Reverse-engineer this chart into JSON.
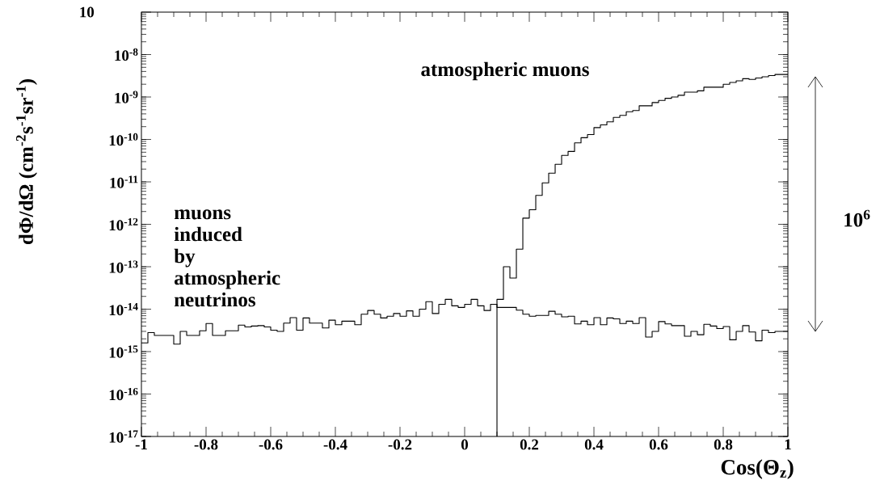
{
  "chart_data": {
    "type": "step",
    "xlabel": "Cos(Θ$_{z}$)",
    "ylabel": "dΦ/dΩ (cm$^{-2}$s$^{-1}$sr$^{-1}$)",
    "xlim": [
      -1,
      1
    ],
    "ylim": [
      1e-17,
      1e-07
    ],
    "log": true,
    "xticks": [
      {
        "value": -1,
        "label": "-1"
      },
      {
        "value": -0.8,
        "label": "-0.8"
      },
      {
        "value": -0.6,
        "label": "-0.6"
      },
      {
        "value": -0.4,
        "label": "-0.4"
      },
      {
        "value": -0.2,
        "label": "-0.2"
      },
      {
        "value": 0,
        "label": "0"
      },
      {
        "value": 0.2,
        "label": "0.2"
      },
      {
        "value": 0.4,
        "label": "0.4"
      },
      {
        "value": 0.6,
        "label": "0.6"
      },
      {
        "value": 0.8,
        "label": "0.8"
      },
      {
        "value": 1,
        "label": "1"
      }
    ],
    "yticks": [
      {
        "value": 1e-17,
        "label": "10$^{-17}$"
      },
      {
        "value": 1e-16,
        "label": "10$^{-16}$"
      },
      {
        "value": 1e-15,
        "label": "10$^{-15}$"
      },
      {
        "value": 1e-14,
        "label": "10$^{-14}$"
      },
      {
        "value": 1e-13,
        "label": "10$^{-13}$"
      },
      {
        "value": 1e-12,
        "label": "10$^{-12}$"
      },
      {
        "value": 1e-11,
        "label": "10$^{-11}$"
      },
      {
        "value": 1e-10,
        "label": "10$^{-10}$"
      },
      {
        "value": 1e-09,
        "label": "10$^{-9}$"
      },
      {
        "value": 1e-08,
        "label": "10$^{-8}$"
      },
      {
        "value": 1e-07,
        "label": null
      }
    ],
    "series": [
      {
        "name": "muons induced by atmospheric neutrinos",
        "color": "#000000",
        "x": [
          -1,
          -0.98,
          -0.96,
          -0.94,
          -0.92,
          -0.9,
          -0.88,
          -0.86,
          -0.84,
          -0.82,
          -0.8,
          -0.78,
          -0.76,
          -0.74,
          -0.72,
          -0.7,
          -0.68,
          -0.66,
          -0.64,
          -0.62,
          -0.6,
          -0.58,
          -0.56,
          -0.54,
          -0.52,
          -0.5,
          -0.48,
          -0.46,
          -0.44,
          -0.42,
          -0.4,
          -0.38,
          -0.36,
          -0.34,
          -0.32,
          -0.3,
          -0.28,
          -0.26,
          -0.24,
          -0.22,
          -0.2,
          -0.18,
          -0.16,
          -0.14,
          -0.12,
          -0.1,
          -0.08,
          -0.06,
          -0.04,
          -0.02,
          0,
          0.02,
          0.04,
          0.06,
          0.08,
          0.1,
          0.12,
          0.14,
          0.16,
          0.18,
          0.2,
          0.22,
          0.24,
          0.26,
          0.28,
          0.3,
          0.32,
          0.34,
          0.36,
          0.38,
          0.4,
          0.42,
          0.44,
          0.46,
          0.48,
          0.5,
          0.52,
          0.54,
          0.56,
          0.58,
          0.6,
          0.62,
          0.64,
          0.66,
          0.68,
          0.7,
          0.72,
          0.74,
          0.76,
          0.78,
          0.8,
          0.82,
          0.84,
          0.86,
          0.88,
          0.9,
          0.92,
          0.94,
          0.96,
          0.98,
          1
        ],
        "values": [
          1.6e-15,
          2.8e-15,
          2.4e-15,
          2.4e-15,
          2.4e-15,
          1.5e-15,
          3e-15,
          2.4e-15,
          2.4e-15,
          3.1e-15,
          4.6e-15,
          2.4e-15,
          2.4e-15,
          3.1e-15,
          3.1e-15,
          4.2e-15,
          3.8e-15,
          4e-15,
          4.1e-15,
          3.8e-15,
          3.2e-15,
          3e-15,
          4.7e-15,
          6.3e-15,
          3.2e-15,
          6.2e-15,
          4.7e-15,
          4.7e-15,
          3.6e-15,
          5.5e-15,
          4.3e-15,
          5.2e-15,
          5.2e-15,
          4.3e-15,
          7.6e-15,
          9.3e-15,
          7.6e-15,
          6.2e-15,
          6.8e-15,
          7.9e-15,
          6.8e-15,
          9.1e-15,
          6.8e-15,
          1e-14,
          1.5e-14,
          7.9e-15,
          1.3e-14,
          1.7e-14,
          1.2e-14,
          1.1e-14,
          1.3e-14,
          1.7e-14,
          1.2e-14,
          9.3e-15,
          1.3e-14,
          1.1e-14,
          1.1e-14,
          1.1e-14,
          9.5e-15,
          7.6e-15,
          6.8e-15,
          7.1e-15,
          7.1e-15,
          8.9e-15,
          7.6e-15,
          6.6e-15,
          6.8e-15,
          4.5e-15,
          5.2e-15,
          4.3e-15,
          6.3e-15,
          4.3e-15,
          6.2e-15,
          5.9e-15,
          4.6e-15,
          5.2e-15,
          4.6e-15,
          6.3e-15,
          2.2e-15,
          3e-15,
          5.1e-15,
          4.5e-15,
          4.1e-15,
          4.1e-15,
          2.3e-15,
          3e-15,
          2.5e-15,
          4.4e-15,
          4e-15,
          3.5e-15,
          3.9e-15,
          1.9e-15,
          3e-15,
          4.1e-15,
          2.9e-15,
          1.8e-15,
          3.2e-15,
          2.8e-15,
          3e-15,
          3e-15,
          3e-15
        ]
      },
      {
        "name": "atmospheric muons",
        "color": "#000000",
        "x": [
          0.1,
          0.1,
          0.12,
          0.14,
          0.16,
          0.18,
          0.2,
          0.22,
          0.24,
          0.26,
          0.28,
          0.3,
          0.32,
          0.34,
          0.36,
          0.38,
          0.4,
          0.42,
          0.44,
          0.46,
          0.48,
          0.5,
          0.52,
          0.54,
          0.56,
          0.58,
          0.6,
          0.62,
          0.64,
          0.66,
          0.68,
          0.7,
          0.72,
          0.74,
          0.76,
          0.78,
          0.8,
          0.82,
          0.84,
          0.86,
          0.88,
          0.9,
          0.92,
          0.94,
          0.96,
          0.98,
          1
        ],
        "values": [
          1e-17,
          1.7e-14,
          1e-13,
          5.4e-14,
          2.6e-13,
          1.4e-12,
          2.2e-12,
          4.8e-12,
          9.5e-12,
          1.6e-11,
          2.6e-11,
          4.2e-11,
          5.2e-11,
          8.3e-11,
          1.1e-10,
          1.3e-10,
          1.9e-10,
          2.2e-10,
          2.6e-10,
          3.3e-10,
          3.7e-10,
          4.5e-10,
          4.8e-10,
          6.2e-10,
          6.2e-10,
          7.4e-10,
          8.3e-10,
          9.3e-10,
          1e-09,
          1.1e-09,
          1.3e-09,
          1.3e-09,
          1.4e-09,
          1.7e-09,
          1.7e-09,
          1.7e-09,
          2e-09,
          2.2e-09,
          2.4e-09,
          2.7e-09,
          2.6e-09,
          2.8e-09,
          3e-09,
          3.2e-09,
          3.4e-09,
          3.4e-09,
          3.4e-09
        ]
      }
    ],
    "annotations": [
      "10$^{6}$",
      "10"
    ]
  }
}
